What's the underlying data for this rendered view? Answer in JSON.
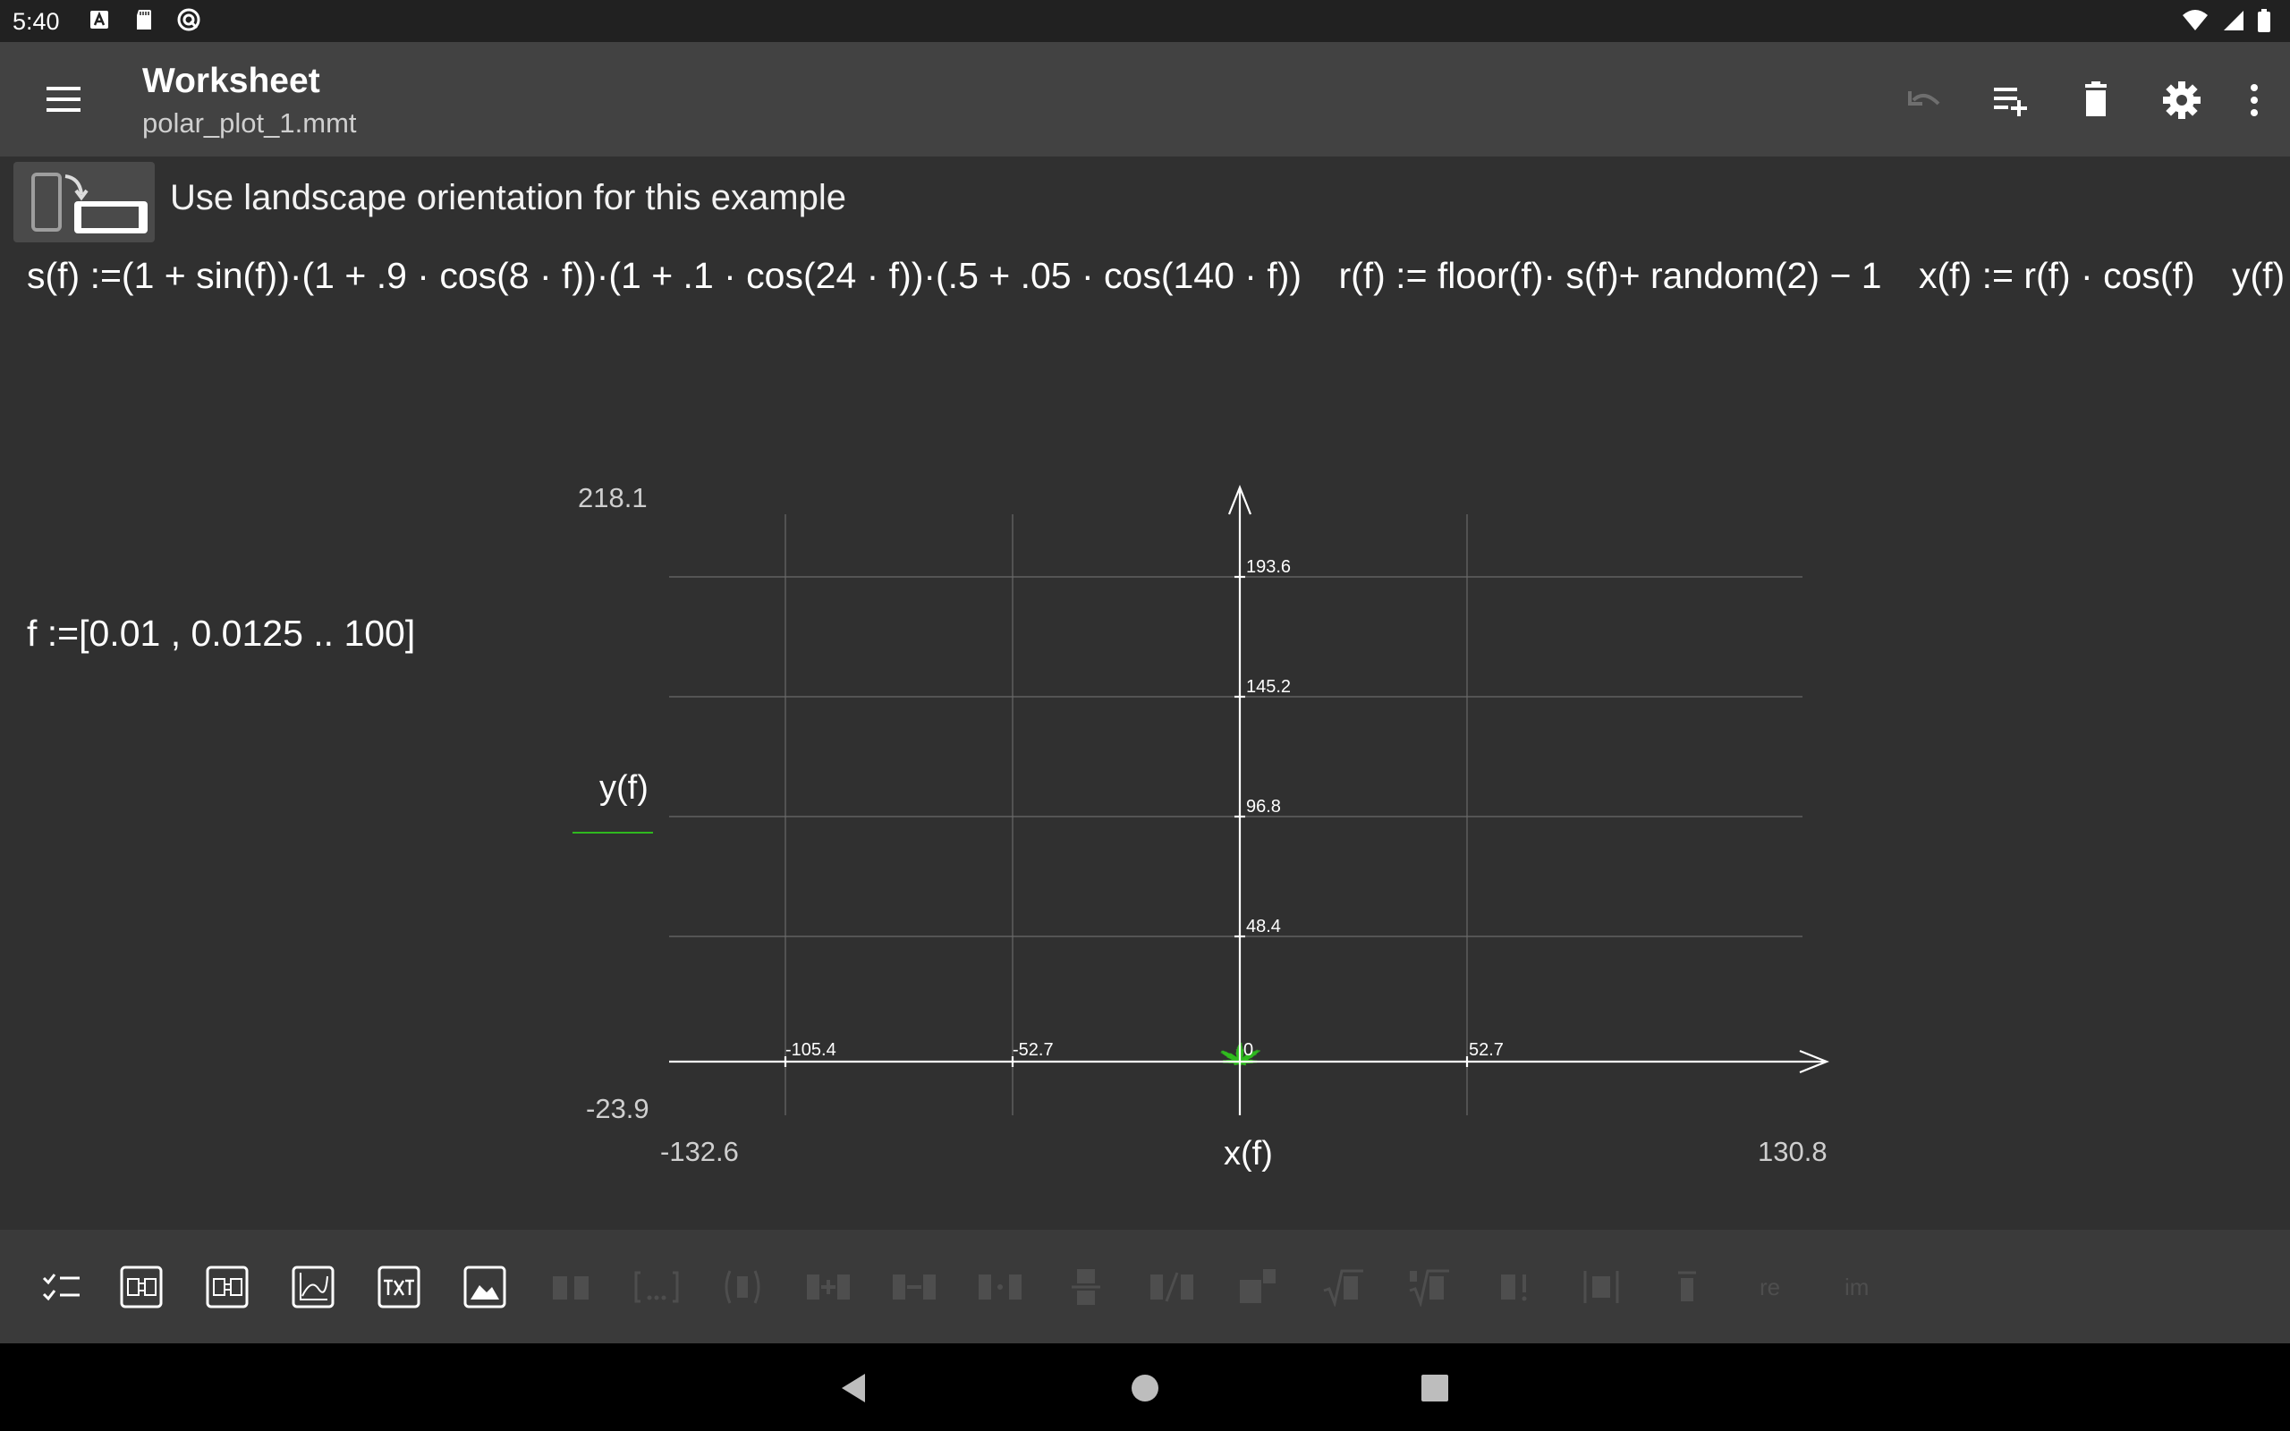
{
  "status_bar": {
    "time": "5:40"
  },
  "app_bar": {
    "title": "Worksheet",
    "subtitle": "polar_plot_1.mmt"
  },
  "hint": {
    "text": "Use landscape orientation for this example"
  },
  "formulas": [
    "s(f) :=(1 + sin(f))·(1 + .9 · cos(8 · f))·(1 + .1 · cos(24 · f))·(.5 + .05 · cos(140 · f))",
    "r(f) := floor(f)· s(f)+ random(2) − 1",
    "x(f) := r(f) · cos(f)",
    "y(f) :="
  ],
  "range_def": "f :=[0.01 , 0.0125 .. 100]",
  "plot": {
    "y_label": "y(f)",
    "x_label": "x(f)",
    "y_max": "218.1",
    "y_min": "-23.9",
    "x_min": "-132.6",
    "x_max": "130.8",
    "x_ticks": [
      "-105.4",
      "-52.7",
      "0",
      "52.7"
    ],
    "y_ticks": [
      "193.6",
      "145.2",
      "96.8",
      "48.4"
    ],
    "curve_color": "#2fb81f"
  },
  "colors": {
    "accent": "#03b8d4",
    "background": "#303030",
    "app_bar": "#424242"
  }
}
